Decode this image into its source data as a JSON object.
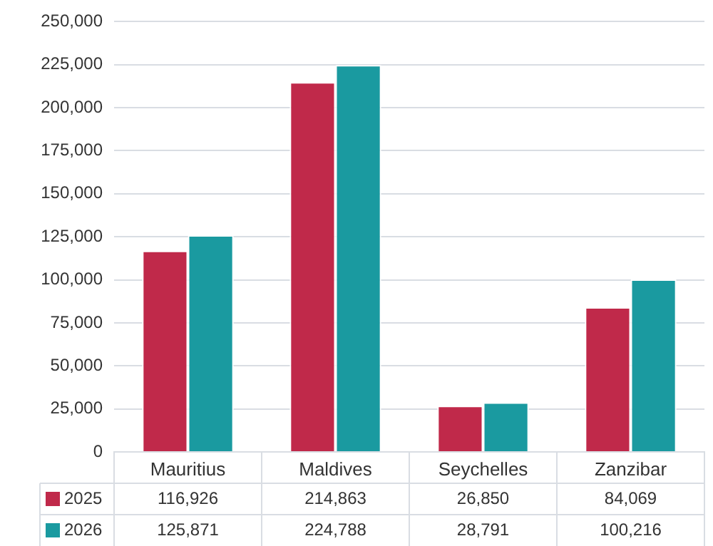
{
  "chart_data": {
    "type": "bar",
    "categories": [
      "Mauritius",
      "Maldives",
      "Seychelles",
      "Zanzibar"
    ],
    "series": [
      {
        "name": "2025",
        "color": "#c0294a",
        "values": [
          116926,
          214863,
          26850,
          84069
        ],
        "value_labels": [
          "116,926",
          "214,863",
          "26,850",
          "84,069"
        ]
      },
      {
        "name": "2026",
        "color": "#1a9aa0",
        "values": [
          125871,
          224788,
          28791,
          100216
        ],
        "value_labels": [
          "125,871",
          "224,788",
          "28,791",
          "100,216"
        ]
      }
    ],
    "ylim": [
      0,
      250000
    ],
    "yticks": [
      {
        "value": 0,
        "label": "0"
      },
      {
        "value": 25000,
        "label": "25,000"
      },
      {
        "value": 50000,
        "label": "50,000"
      },
      {
        "value": 75000,
        "label": "75,000"
      },
      {
        "value": 100000,
        "label": "100,000"
      },
      {
        "value": 125000,
        "label": "125,000"
      },
      {
        "value": 150000,
        "label": "150,000"
      },
      {
        "value": 175000,
        "label": "175,000"
      },
      {
        "value": 200000,
        "label": "200,000"
      },
      {
        "value": 225000,
        "label": "225,000"
      },
      {
        "value": 250000,
        "label": "250,000"
      }
    ],
    "grid": "y",
    "legend": "bottom"
  }
}
